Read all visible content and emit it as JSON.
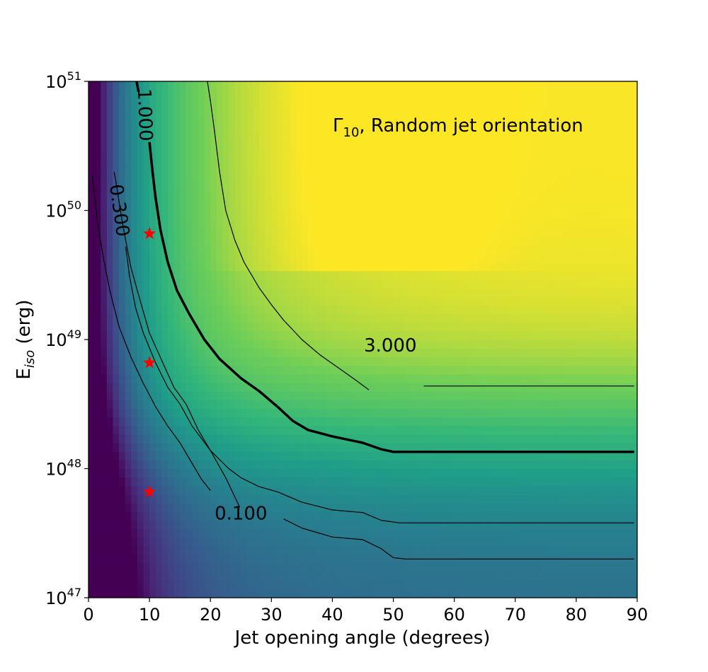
{
  "chart_data": {
    "type": "heatmap",
    "title": "",
    "annotation": {
      "symbol": "Γ",
      "subscript": "10",
      "text": ", Random jet orientation"
    },
    "xlabel": "Jet opening angle (degrees)",
    "ylabel": {
      "base": "E",
      "subscript": "iso",
      "suffix": " (erg)"
    },
    "x_scale": "linear",
    "y_scale": "log",
    "xlim": [
      0,
      90
    ],
    "ylim_log10": [
      47,
      51
    ],
    "x_ticks": [
      {
        "value": 0,
        "label": "0"
      },
      {
        "value": 10,
        "label": "10"
      },
      {
        "value": 20,
        "label": "20"
      },
      {
        "value": 30,
        "label": "30"
      },
      {
        "value": 40,
        "label": "40"
      },
      {
        "value": 50,
        "label": "50"
      },
      {
        "value": 60,
        "label": "60"
      },
      {
        "value": 70,
        "label": "70"
      },
      {
        "value": 80,
        "label": "80"
      },
      {
        "value": 90,
        "label": "90"
      }
    ],
    "y_ticks": [
      {
        "log10": 47,
        "base": "10",
        "exp": "47"
      },
      {
        "log10": 48,
        "base": "10",
        "exp": "48"
      },
      {
        "log10": 49,
        "base": "10",
        "exp": "49"
      },
      {
        "log10": 50,
        "base": "10",
        "exp": "50"
      },
      {
        "log10": 51,
        "base": "10",
        "exp": "51"
      }
    ],
    "colormap": "viridis",
    "contours": [
      {
        "level": 0.1,
        "label": "0.100",
        "label_at": [
          25,
          47.65
        ],
        "label_rotation": 0,
        "style": "thin",
        "points": [
          [
            24.8,
            47.7
          ],
          [
            22.5,
            47.93
          ],
          [
            20.0,
            48.14
          ],
          [
            18.0,
            48.3
          ],
          [
            16.0,
            48.5
          ],
          [
            14.0,
            48.63
          ],
          [
            12.0,
            48.84
          ],
          [
            10.0,
            49.05
          ],
          [
            8.0,
            49.38
          ],
          [
            6.9,
            49.57
          ],
          [
            5.5,
            49.92
          ],
          [
            4.5,
            50.22
          ],
          [
            4.2,
            50.3
          ]
        ],
        "points2": [
          [
            32.0,
            47.61
          ],
          [
            35.0,
            47.54
          ],
          [
            40.0,
            47.47
          ],
          [
            45.0,
            47.45
          ],
          [
            48.0,
            47.38
          ],
          [
            50.0,
            47.31
          ],
          [
            52.0,
            47.3
          ],
          [
            60.0,
            47.3
          ],
          [
            70.0,
            47.3
          ],
          [
            80.0,
            47.3
          ],
          [
            89.5,
            47.3
          ]
        ]
      },
      {
        "level": 0.3,
        "label": "0.300",
        "label_at": [
          5.0,
          50.0
        ],
        "label_rotation": 82,
        "style": "thin",
        "points": [
          [
            6.1,
            49.72
          ],
          [
            6.7,
            49.5
          ],
          [
            7.7,
            49.25
          ],
          [
            9.0,
            49.05
          ],
          [
            11.0,
            48.82
          ],
          [
            13.0,
            48.63
          ],
          [
            15.0,
            48.5
          ],
          [
            17.0,
            48.33
          ],
          [
            20.0,
            48.14
          ],
          [
            23.0,
            48.0
          ],
          [
            25.0,
            47.93
          ],
          [
            28.0,
            47.86
          ],
          [
            31.0,
            47.82
          ],
          [
            35.0,
            47.74
          ],
          [
            40.0,
            47.68
          ],
          [
            45.0,
            47.66
          ],
          [
            48.0,
            47.6
          ],
          [
            51.0,
            47.58
          ],
          [
            60.0,
            47.58
          ],
          [
            70.0,
            47.58
          ],
          [
            80.0,
            47.58
          ],
          [
            89.5,
            47.58
          ]
        ],
        "points2": [
          [
            0.6,
            50.27
          ],
          [
            1.5,
            49.9
          ],
          [
            2.5,
            49.62
          ],
          [
            3.5,
            49.38
          ],
          [
            5.0,
            49.1
          ],
          [
            7.0,
            48.86
          ],
          [
            9.0,
            48.66
          ],
          [
            11.0,
            48.48
          ],
          [
            13.0,
            48.33
          ],
          [
            15.0,
            48.2
          ],
          [
            17.0,
            48.04
          ],
          [
            18.5,
            47.92
          ],
          [
            20.0,
            47.83
          ]
        ]
      },
      {
        "level": 1.0,
        "label": "1.000",
        "label_at": [
          9.2,
          50.74
        ],
        "label_rotation": 88,
        "style": "thick",
        "points": [
          [
            10.0,
            50.53
          ],
          [
            10.5,
            50.3
          ],
          [
            11.0,
            50.1
          ],
          [
            11.8,
            49.85
          ],
          [
            13.0,
            49.6
          ],
          [
            14.5,
            49.38
          ],
          [
            16.5,
            49.2
          ],
          [
            19.0,
            49.0
          ],
          [
            21.5,
            48.85
          ],
          [
            25.0,
            48.7
          ],
          [
            28.0,
            48.6
          ],
          [
            31.0,
            48.48
          ],
          [
            33.5,
            48.37
          ],
          [
            36.0,
            48.3
          ],
          [
            40.0,
            48.25
          ],
          [
            45.0,
            48.2
          ],
          [
            48.0,
            48.15
          ],
          [
            50.0,
            48.13
          ],
          [
            55.0,
            48.13
          ],
          [
            60.0,
            48.13
          ],
          [
            70.0,
            48.13
          ],
          [
            80.0,
            48.13
          ],
          [
            89.5,
            48.13
          ]
        ],
        "points2": [
          [
            7.9,
            51.0
          ],
          [
            8.2,
            50.92
          ]
        ]
      },
      {
        "level": 3.0,
        "label": "3.000",
        "label_at": [
          49.5,
          48.95
        ],
        "label_rotation": 0,
        "style": "thin",
        "points": [
          [
            19.5,
            51.0
          ],
          [
            20.0,
            50.85
          ],
          [
            20.7,
            50.6
          ],
          [
            21.5,
            50.3
          ],
          [
            22.5,
            50.0
          ],
          [
            24.0,
            49.77
          ],
          [
            25.5,
            49.6
          ],
          [
            28.0,
            49.4
          ],
          [
            30.0,
            49.27
          ],
          [
            32.0,
            49.15
          ],
          [
            35.0,
            49.0
          ],
          [
            38.0,
            48.88
          ],
          [
            41.0,
            48.78
          ],
          [
            44.0,
            48.68
          ],
          [
            46.0,
            48.61
          ]
        ],
        "points2": [
          [
            55.0,
            48.64
          ],
          [
            60.0,
            48.64
          ],
          [
            70.0,
            48.64
          ],
          [
            80.0,
            48.64
          ],
          [
            89.5,
            48.64
          ]
        ]
      }
    ],
    "markers": [
      {
        "x": 10,
        "log10_y": 49.82,
        "symbol": "star",
        "color": "#ff0000"
      },
      {
        "x": 10,
        "log10_y": 48.82,
        "symbol": "star",
        "color": "#ff0000"
      },
      {
        "x": 10,
        "log10_y": 47.82,
        "symbol": "star",
        "color": "#ff0000"
      }
    ],
    "grid": false,
    "legend": "none"
  }
}
